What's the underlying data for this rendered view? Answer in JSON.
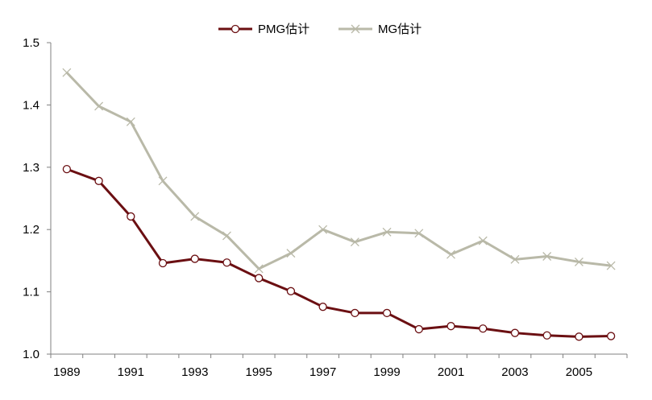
{
  "chart_data": {
    "type": "line",
    "title": "",
    "xlabel": "",
    "ylabel": "",
    "ylim": [
      1.0,
      1.5
    ],
    "yticks": [
      "1.0",
      "1.1",
      "1.2",
      "1.3",
      "1.4",
      "1.5"
    ],
    "xtick_labels": [
      "1989",
      "1991",
      "1993",
      "1995",
      "1997",
      "1999",
      "2001",
      "2003",
      "2005"
    ],
    "x": [
      1989,
      1990,
      1991,
      1992,
      1993,
      1994,
      1995,
      1996,
      1997,
      1998,
      1999,
      2000,
      2001,
      2002,
      2003,
      2004,
      2005,
      2006
    ],
    "legend_position": "top-center",
    "grid": false,
    "series": [
      {
        "name": "PMG估计",
        "color": "#6b0f12",
        "marker": "open-circle",
        "values": [
          1.297,
          1.278,
          1.221,
          1.146,
          1.153,
          1.147,
          1.122,
          1.101,
          1.076,
          1.066,
          1.066,
          1.04,
          1.045,
          1.041,
          1.034,
          1.03,
          1.028,
          1.029
        ]
      },
      {
        "name": "MG估计",
        "color": "#b9b9a8",
        "marker": "x",
        "values": [
          1.452,
          1.398,
          1.373,
          1.278,
          1.221,
          1.19,
          1.137,
          1.162,
          1.2,
          1.18,
          1.196,
          1.194,
          1.16,
          1.182,
          1.152,
          1.157,
          1.148,
          1.142
        ]
      }
    ]
  }
}
